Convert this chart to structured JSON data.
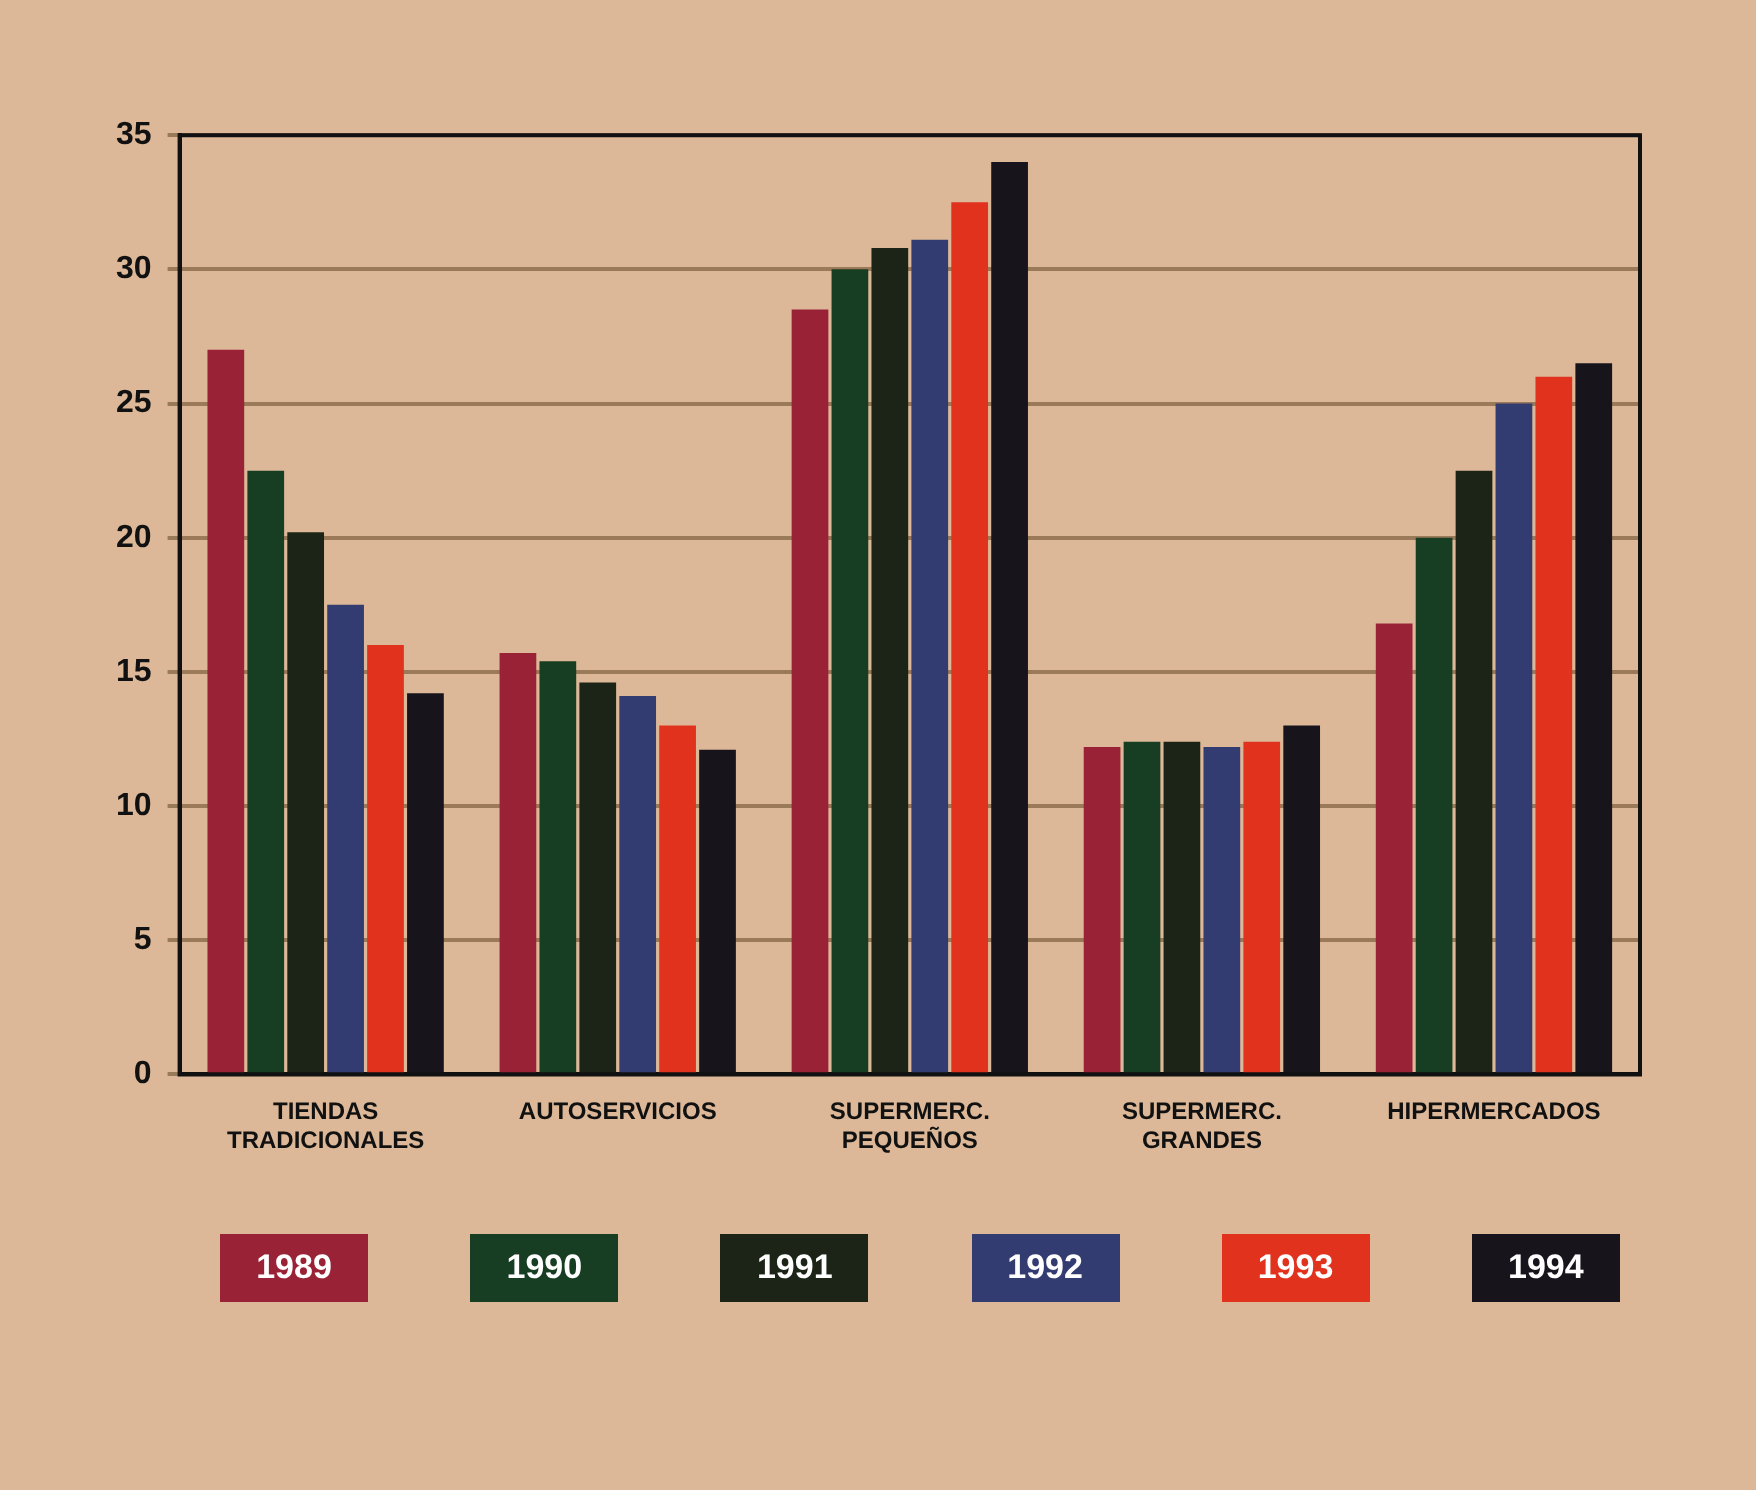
{
  "chart_data": {
    "type": "bar",
    "categories": [
      "TIENDAS TRADICIONALES",
      "AUTOSERVICIOS",
      "SUPERMERC. PEQUEÑOS",
      "SUPERMERC. GRANDES",
      "HIPERMERCADOS"
    ],
    "series": [
      {
        "name": "1989",
        "color": "#9a2236",
        "values": [
          27,
          15.7,
          28.5,
          12.2,
          16.8
        ]
      },
      {
        "name": "1990",
        "color": "#173d22",
        "values": [
          22.5,
          15.4,
          30,
          12.4,
          20
        ]
      },
      {
        "name": "1991",
        "color": "#1c2417",
        "values": [
          20.2,
          14.6,
          30.8,
          12.4,
          22.5
        ]
      },
      {
        "name": "1992",
        "color": "#323c70",
        "values": [
          17.5,
          14.1,
          31.1,
          12.2,
          25
        ]
      },
      {
        "name": "1993",
        "color": "#e0321c",
        "values": [
          16,
          13,
          32.5,
          12.4,
          26
        ]
      },
      {
        "name": "1994",
        "color": "#18141c",
        "values": [
          14.2,
          12.1,
          34,
          13,
          26.5
        ]
      }
    ],
    "ylim": [
      0,
      35
    ],
    "yticks": [
      0,
      5,
      10,
      15,
      20,
      25,
      30,
      35
    ],
    "grid": "y",
    "legend": "bottom"
  }
}
